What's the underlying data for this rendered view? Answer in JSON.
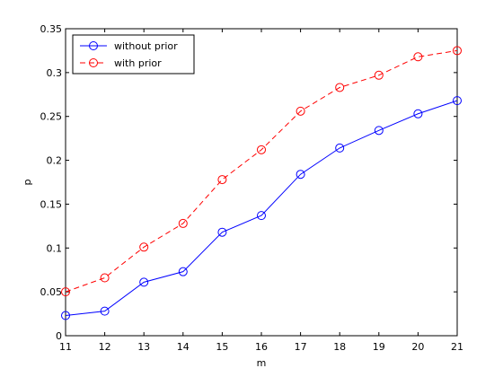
{
  "chart_data": {
    "type": "line",
    "title": "",
    "xlabel": "m",
    "ylabel": "p",
    "x": [
      11,
      12,
      13,
      14,
      15,
      16,
      17,
      18,
      19,
      20,
      21
    ],
    "xlim": [
      11,
      21
    ],
    "ylim": [
      0,
      0.35
    ],
    "xticks": [
      "11",
      "12",
      "13",
      "14",
      "15",
      "16",
      "17",
      "18",
      "19",
      "20",
      "21"
    ],
    "yticks": [
      "0",
      "0.05",
      "0.1",
      "0.15",
      "0.2",
      "0.25",
      "0.3",
      "0.35"
    ],
    "grid": false,
    "legend_position": "top-left",
    "series": [
      {
        "name": "without prior",
        "color": "#0000ff",
        "line_style": "solid",
        "marker": "circle",
        "values": [
          0.023,
          0.028,
          0.061,
          0.073,
          0.118,
          0.137,
          0.184,
          0.214,
          0.234,
          0.253,
          0.268
        ]
      },
      {
        "name": "with prior",
        "color": "#ff0000",
        "line_style": "dashed",
        "marker": "circle",
        "values": [
          0.05,
          0.066,
          0.101,
          0.128,
          0.178,
          0.212,
          0.256,
          0.283,
          0.297,
          0.318,
          0.325
        ]
      }
    ]
  }
}
